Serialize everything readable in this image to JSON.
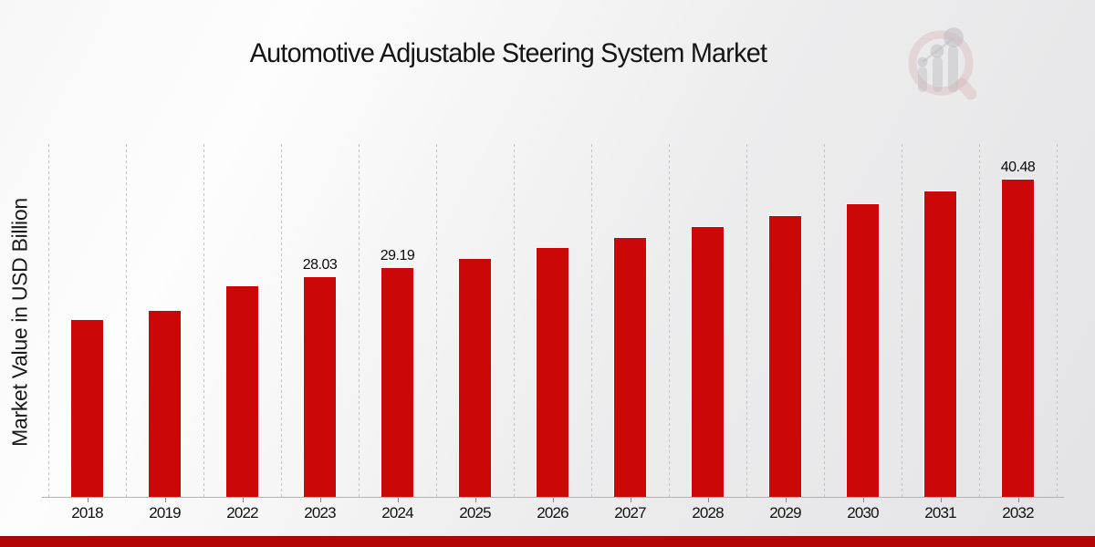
{
  "chart": {
    "title": "Automotive Adjustable Steering System Market",
    "y_axis_label": "Market Value in USD Billion"
  },
  "chart_data": {
    "type": "bar",
    "title": "Automotive Adjustable Steering System Market",
    "xlabel": "",
    "ylabel": "Market Value in USD Billion",
    "categories": [
      "2018",
      "2019",
      "2022",
      "2023",
      "2024",
      "2025",
      "2026",
      "2027",
      "2028",
      "2029",
      "2030",
      "2031",
      "2032"
    ],
    "values": [
      22.5,
      23.7,
      26.9,
      28.03,
      29.19,
      30.4,
      31.7,
      33.0,
      34.4,
      35.8,
      37.3,
      38.9,
      40.48
    ],
    "value_labels": [
      "",
      "",
      "",
      "28.03",
      "29.19",
      "",
      "",
      "",
      "",
      "",
      "",
      "",
      "40.48"
    ],
    "ylim": [
      0,
      45
    ],
    "grid": "vertical-dashed",
    "legend": "none",
    "series_name": "Market Value"
  },
  "colors": {
    "bar": "#cc0707",
    "bottom_band": "#b30505",
    "gridline": "#c3c3c6",
    "axis": "#b3b3b6",
    "title_text": "#141414",
    "background_light": "#fdfdfd",
    "background_dark": "#e3e3e5"
  },
  "icons": {
    "logo": "market-research-future-logo"
  }
}
